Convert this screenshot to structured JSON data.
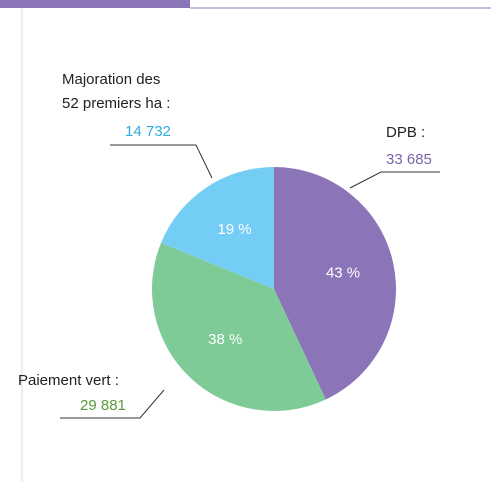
{
  "chart_data": {
    "type": "pie",
    "categories": [
      "DPB :",
      "Paiement vert :",
      "Majoration des|52 premiers ha :"
    ],
    "values": [
      33685,
      29881,
      14732
    ],
    "value_labels": [
      "33 685",
      "29 881",
      "14 732"
    ],
    "percents": [
      43,
      38,
      19
    ],
    "percent_labels": [
      "43 %",
      "38 %",
      "19 %"
    ],
    "colors": [
      "#8c74b8",
      "#7fcb97",
      "#74cdf5"
    ],
    "label_colors": [
      "#7b65a8",
      "#5b9a3c",
      "#2aaee2"
    ]
  }
}
